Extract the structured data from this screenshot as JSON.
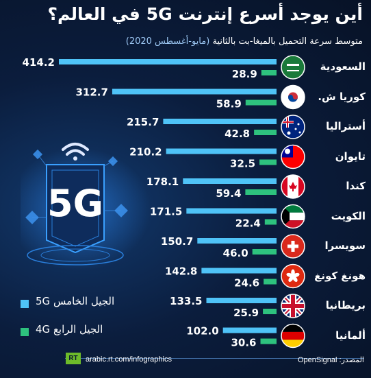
{
  "title": "أين يوجد أسرع إنترنت 5G في العالم؟",
  "subtitle": "متوسط سرعة التحميل بالميغا-بت بالثانية",
  "subtitle_paren": "(مايو-أغسطس 2020)",
  "legend": {
    "g5_label": "الجيل الخامس 5G",
    "g4_label": "الجيل الرابع 4G"
  },
  "colors": {
    "g5": "#4fc3f7",
    "g4": "#2ec27e",
    "background": "#0b1d3d"
  },
  "illustration": {
    "text": "5G",
    "icon": "wifi-icon"
  },
  "footer": {
    "logo": "RT",
    "site": "arabic.rt.com/infographics",
    "source": "المصدر: OpenSignal"
  },
  "chart_data": {
    "type": "bar",
    "title": "أين يوجد أسرع إنترنت 5G في العالم؟",
    "subtitle": "متوسط سرعة التحميل بالميغا-بت بالثانية (مايو-أغسطس 2020)",
    "categories": [
      "السعودية",
      "كوريا ش.",
      "أستراليا",
      "تايوان",
      "كندا",
      "الكويت",
      "سويسرا",
      "هونغ كونغ",
      "بريطانيا",
      "ألمانيا"
    ],
    "flags": [
      "saudi-arabia-flag",
      "south-korea-flag",
      "australia-flag",
      "taiwan-flag",
      "canada-flag",
      "kuwait-flag",
      "switzerland-flag",
      "hong-kong-flag",
      "uk-flag",
      "germany-flag"
    ],
    "series": [
      {
        "name": "الجيل الخامس 5G",
        "values": [
          414.2,
          312.7,
          215.7,
          210.2,
          178.1,
          171.5,
          150.7,
          142.8,
          133.5,
          102.0
        ],
        "labels": [
          "414.2",
          "312.7",
          "215.7",
          "210.2",
          "178.1",
          "171.5",
          "150.7",
          "142.8",
          "133.5",
          "102.0"
        ]
      },
      {
        "name": "الجيل الرابع 4G",
        "values": [
          28.9,
          58.9,
          42.8,
          32.5,
          59.4,
          22.4,
          46.0,
          24.6,
          25.9,
          30.6
        ],
        "labels": [
          "28.9",
          "58.9",
          "42.8",
          "32.5",
          "59.4",
          "22.4",
          "46.0",
          "24.6",
          "25.9",
          "30.6"
        ]
      }
    ],
    "orientation": "horizontal",
    "legend_position": "bottom-left",
    "grid": false
  }
}
